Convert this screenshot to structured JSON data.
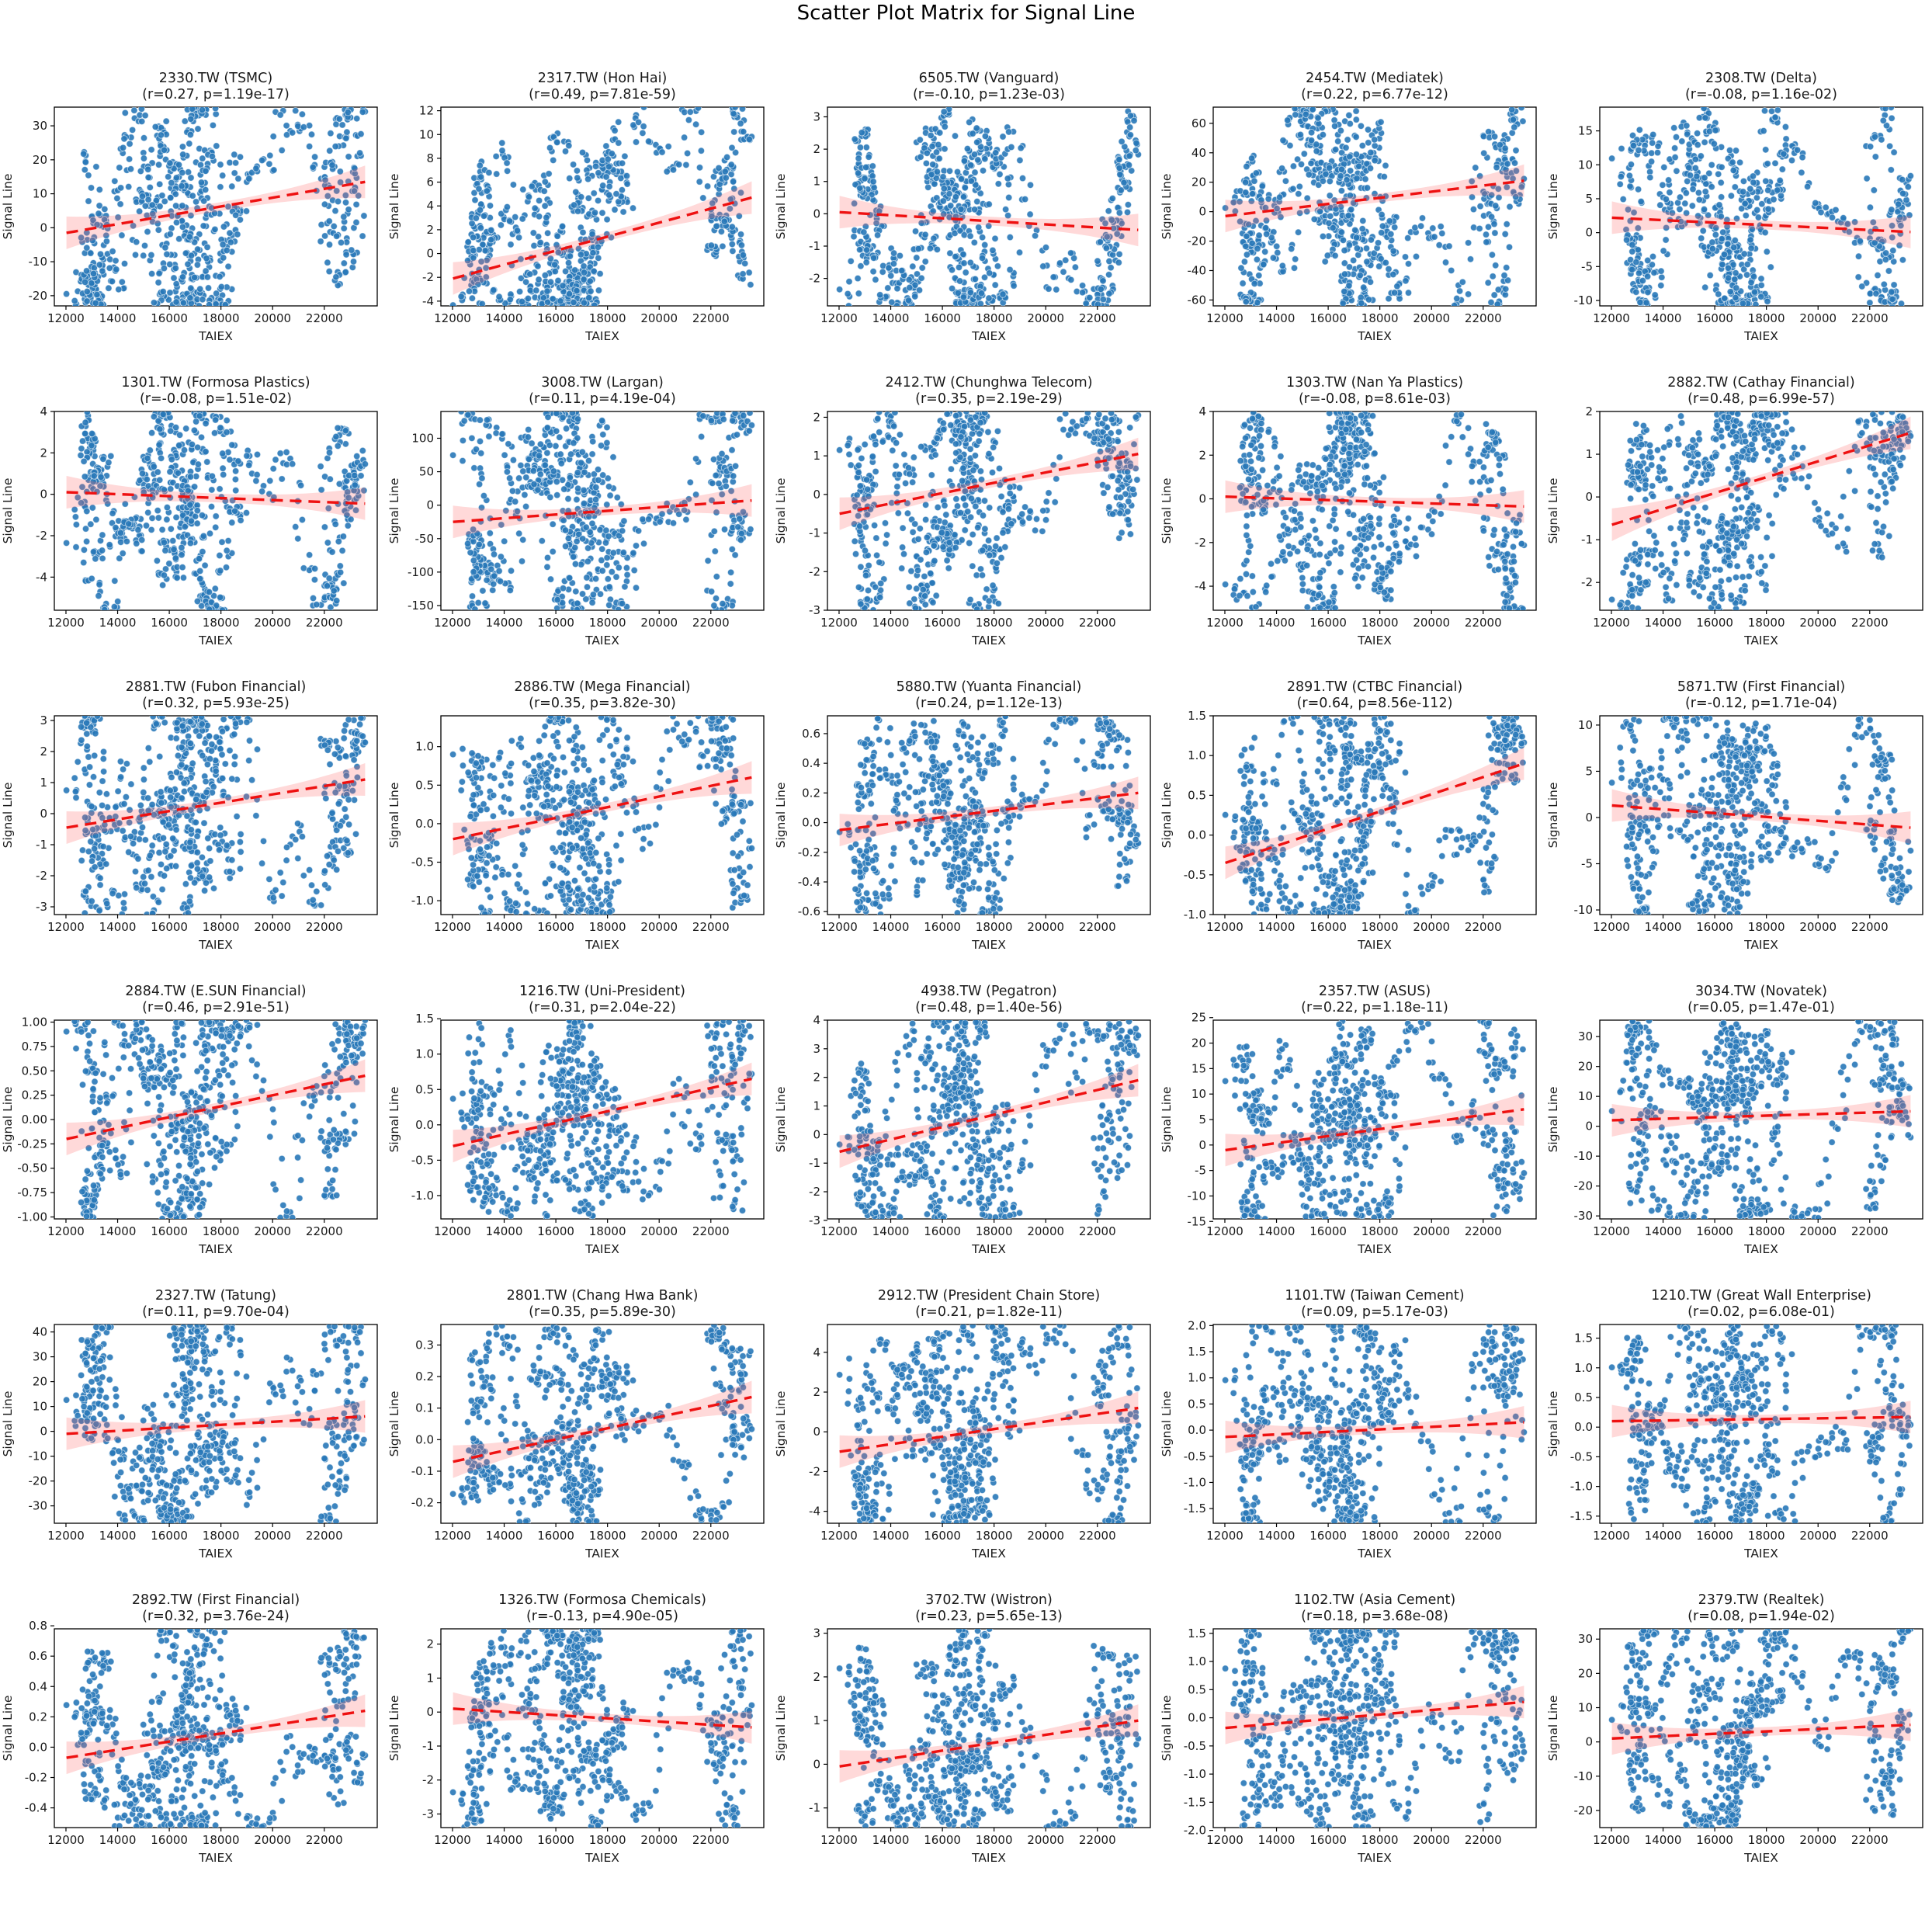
{
  "page_title": "Scatter Plot Matrix for Signal Line",
  "style": {
    "point_color": "#2878b8",
    "point_edge": "#ffffff",
    "trend_color": "#ee1111",
    "band_color": "#ff6666",
    "axis_color": "#000000",
    "text_color": "#1a1a1a"
  },
  "axes": {
    "xlabel": "TAIEX",
    "ylabel": "Signal Line",
    "x_ticks": [
      12000,
      14000,
      16000,
      18000,
      20000,
      22000
    ],
    "xlim": [
      11550,
      24050
    ],
    "x_data_range": [
      12020,
      23580
    ]
  },
  "generation": {
    "n_points": 700,
    "taiex_anchors": [
      12250,
      13600,
      12850,
      14900,
      16300,
      17650,
      18800,
      17250,
      15350,
      12950,
      12750,
      14450,
      15650,
      16850,
      16300,
      15150,
      16800,
      17650,
      16550,
      17350,
      18250,
      20500,
      22400,
      23400,
      21950,
      22700,
      23500
    ]
  },
  "chart_data": [
    {
      "type": "scatter",
      "label": "2330.TW (TSMC)",
      "stats": "(r=0.27, p=1.19e-17)",
      "r": 0.27,
      "p": "1.19e-17",
      "ylim": [
        -23,
        35.5
      ],
      "y_ticks": [
        -20,
        -10,
        0,
        10,
        20,
        30
      ],
      "fmt": 0,
      "trend": [
        -1.5,
        13.5
      ]
    },
    {
      "type": "scatter",
      "label": "2317.TW (Hon Hai)",
      "stats": "(r=0.49, p=7.81e-59)",
      "r": 0.49,
      "p": "7.81e-59",
      "ylim": [
        -4.4,
        12.3
      ],
      "y_ticks": [
        -4,
        -2,
        0,
        2,
        4,
        6,
        8,
        10,
        12
      ],
      "fmt": 0,
      "trend": [
        -2.1,
        4.7
      ]
    },
    {
      "type": "scatter",
      "label": "6505.TW (Vanguard)",
      "stats": "(r=-0.10, p=1.23e-03)",
      "r": -0.1,
      "p": "1.23e-03",
      "ylim": [
        -2.85,
        3.3
      ],
      "y_ticks": [
        -2,
        -1,
        0,
        1,
        2,
        3
      ],
      "fmt": 0,
      "trend": [
        0.05,
        -0.5
      ]
    },
    {
      "type": "scatter",
      "label": "2454.TW (Mediatek)",
      "stats": "(r=0.22, p=6.77e-12)",
      "r": 0.22,
      "p": "6.77e-12",
      "ylim": [
        -64,
        71
      ],
      "y_ticks": [
        -60,
        -40,
        -20,
        0,
        20,
        40,
        60
      ],
      "fmt": 0,
      "trend": [
        -3,
        21
      ]
    },
    {
      "type": "scatter",
      "label": "2308.TW (Delta)",
      "stats": "(r=-0.08, p=1.16e-02)",
      "r": -0.08,
      "p": "1.16e-02",
      "ylim": [
        -10.8,
        18.5
      ],
      "y_ticks": [
        -10,
        -5,
        0,
        5,
        10,
        15
      ],
      "fmt": 0,
      "trend": [
        2.2,
        0.1
      ]
    },
    {
      "type": "scatter",
      "label": "1301.TW (Formosa Plastics)",
      "stats": "(r=-0.08, p=1.51e-02)",
      "r": -0.08,
      "p": "1.51e-02",
      "ylim": [
        -5.6,
        4.0
      ],
      "y_ticks": [
        -4,
        -2,
        0,
        2,
        4
      ],
      "fmt": 0,
      "trend": [
        0.1,
        -0.45
      ]
    },
    {
      "type": "scatter",
      "label": "3008.TW (Largan)",
      "stats": "(r=0.11, p=4.19e-04)",
      "r": 0.11,
      "p": "4.19e-04",
      "ylim": [
        -157,
        140
      ],
      "y_ticks": [
        -150,
        -100,
        -50,
        0,
        50,
        100
      ],
      "fmt": 0,
      "trend": [
        -25,
        7
      ]
    },
    {
      "type": "scatter",
      "label": "2412.TW (Chunghwa Telecom)",
      "stats": "(r=0.35, p=2.19e-29)",
      "r": 0.35,
      "p": "2.19e-29",
      "ylim": [
        -3.0,
        2.15
      ],
      "y_ticks": [
        -3,
        -2,
        -1,
        0,
        1,
        2
      ],
      "fmt": 0,
      "trend": [
        -0.5,
        1.05
      ]
    },
    {
      "type": "scatter",
      "label": "1303.TW (Nan Ya Plastics)",
      "stats": "(r=-0.08, p=8.61e-03)",
      "r": -0.08,
      "p": "8.61e-03",
      "ylim": [
        -5.1,
        4.0
      ],
      "y_ticks": [
        -4,
        -2,
        0,
        2,
        4
      ],
      "fmt": 0,
      "trend": [
        0.1,
        -0.35
      ]
    },
    {
      "type": "scatter",
      "label": "2882.TW (Cathay Financial)",
      "stats": "(r=0.48, p=6.99e-57)",
      "r": 0.48,
      "p": "6.99e-57",
      "ylim": [
        -2.65,
        2.0
      ],
      "y_ticks": [
        -2,
        -1,
        0,
        1,
        2
      ],
      "fmt": 0,
      "trend": [
        -0.65,
        1.5
      ]
    },
    {
      "type": "scatter",
      "label": "2881.TW (Fubon Financial)",
      "stats": "(r=0.32, p=5.93e-25)",
      "r": 0.32,
      "p": "5.93e-25",
      "ylim": [
        -3.25,
        3.15
      ],
      "y_ticks": [
        -3,
        -2,
        -1,
        0,
        1,
        2,
        3
      ],
      "fmt": 0,
      "trend": [
        -0.45,
        1.1
      ]
    },
    {
      "type": "scatter",
      "label": "2886.TW (Mega Financial)",
      "stats": "(r=0.35, p=3.82e-30)",
      "r": 0.35,
      "p": "3.82e-30",
      "ylim": [
        -1.18,
        1.4
      ],
      "y_ticks": [
        -1.0,
        -0.5,
        0.0,
        0.5,
        1.0
      ],
      "fmt": 1,
      "trend": [
        -0.2,
        0.6
      ]
    },
    {
      "type": "scatter",
      "label": "5880.TW (Yuanta Financial)",
      "stats": "(r=0.24, p=1.12e-13)",
      "r": 0.24,
      "p": "1.12e-13",
      "ylim": [
        -0.62,
        0.72
      ],
      "y_ticks": [
        -0.6,
        -0.4,
        -0.2,
        0.0,
        0.2,
        0.4,
        0.6
      ],
      "fmt": 1,
      "trend": [
        -0.05,
        0.2
      ]
    },
    {
      "type": "scatter",
      "label": "2891.TW (CTBC Financial)",
      "stats": "(r=0.64, p=8.56e-112)",
      "r": 0.64,
      "p": "8.56e-112",
      "ylim": [
        -1.0,
        1.5
      ],
      "y_ticks": [
        -1.0,
        -0.5,
        0.0,
        0.5,
        1.0,
        1.5
      ],
      "fmt": 1,
      "trend": [
        -0.35,
        0.9
      ]
    },
    {
      "type": "scatter",
      "label": "5871.TW (First Financial)",
      "stats": "(r=-0.12, p=1.71e-04)",
      "r": -0.12,
      "p": "1.71e-04",
      "ylim": [
        -10.5,
        11
      ],
      "y_ticks": [
        -10,
        -5,
        0,
        5,
        10
      ],
      "fmt": 0,
      "trend": [
        1.3,
        -1.1
      ]
    },
    {
      "type": "scatter",
      "label": "2884.TW (E.SUN Financial)",
      "stats": "(r=0.46, p=2.91e-51)",
      "r": 0.46,
      "p": "2.91e-51",
      "ylim": [
        -1.02,
        1.02
      ],
      "y_ticks": [
        -1.0,
        -0.75,
        -0.5,
        -0.25,
        0.0,
        0.25,
        0.5,
        0.75,
        1.0
      ],
      "fmt": 2,
      "trend": [
        -0.2,
        0.45
      ]
    },
    {
      "type": "scatter",
      "label": "1216.TW (Uni-President)",
      "stats": "(r=0.31, p=2.04e-22)",
      "r": 0.31,
      "p": "2.04e-22",
      "ylim": [
        -1.33,
        1.48
      ],
      "y_ticks": [
        -1.0,
        -0.5,
        0.0,
        0.5,
        1.0,
        1.5
      ],
      "fmt": 1,
      "trend": [
        -0.3,
        0.65
      ]
    },
    {
      "type": "scatter",
      "label": "4938.TW (Pegatron)",
      "stats": "(r=0.48, p=1.40e-56)",
      "r": 0.48,
      "p": "1.40e-56",
      "ylim": [
        -2.95,
        4.0
      ],
      "y_ticks": [
        -3,
        -2,
        -1,
        0,
        1,
        2,
        3,
        4
      ],
      "fmt": 0,
      "trend": [
        -0.6,
        1.9
      ]
    },
    {
      "type": "scatter",
      "label": "2357.TW (ASUS)",
      "stats": "(r=0.22, p=1.18e-11)",
      "r": 0.22,
      "p": "1.18e-11",
      "ylim": [
        -14.5,
        24.5
      ],
      "y_ticks": [
        -15,
        -10,
        -5,
        0,
        5,
        10,
        15,
        20,
        25
      ],
      "fmt": 0,
      "trend": [
        -1,
        7
      ]
    },
    {
      "type": "scatter",
      "label": "3034.TW (Novatek)",
      "stats": "(r=0.05, p=1.47e-01)",
      "r": 0.05,
      "p": "1.47e-01",
      "ylim": [
        -31,
        35.5
      ],
      "y_ticks": [
        -30,
        -20,
        -10,
        0,
        10,
        20,
        30
      ],
      "fmt": 0,
      "trend": [
        2,
        5
      ]
    },
    {
      "type": "scatter",
      "label": "2327.TW (Tatung)",
      "stats": "(r=0.11, p=9.70e-04)",
      "r": 0.11,
      "p": "9.70e-04",
      "ylim": [
        -37,
        43
      ],
      "y_ticks": [
        -30,
        -20,
        -10,
        0,
        10,
        20,
        30,
        40
      ],
      "fmt": 0,
      "trend": [
        -1,
        6
      ]
    },
    {
      "type": "scatter",
      "label": "2801.TW (Chang Hwa Bank)",
      "stats": "(r=0.35, p=5.89e-30)",
      "r": 0.35,
      "p": "5.89e-30",
      "ylim": [
        -0.265,
        0.365
      ],
      "y_ticks": [
        -0.2,
        -0.1,
        0.0,
        0.1,
        0.2,
        0.3
      ],
      "fmt": 1,
      "trend": [
        -0.07,
        0.135
      ]
    },
    {
      "type": "scatter",
      "label": "2912.TW (President Chain Store)",
      "stats": "(r=0.21, p=1.82e-11)",
      "r": 0.21,
      "p": "1.82e-11",
      "ylim": [
        -4.6,
        5.4
      ],
      "y_ticks": [
        -4,
        -2,
        0,
        2,
        4
      ],
      "fmt": 0,
      "trend": [
        -1.0,
        1.2
      ]
    },
    {
      "type": "scatter",
      "label": "1101.TW (Taiwan Cement)",
      "stats": "(r=0.09, p=5.17e-03)",
      "r": 0.09,
      "p": "5.17e-03",
      "ylim": [
        -1.78,
        2.02
      ],
      "y_ticks": [
        -1.5,
        -1.0,
        -0.5,
        0.0,
        0.5,
        1.0,
        1.5,
        2.0
      ],
      "fmt": 1,
      "trend": [
        -0.13,
        0.15
      ]
    },
    {
      "type": "scatter",
      "label": "1210.TW (Great Wall Enterprise)",
      "stats": "(r=0.02, p=6.08e-01)",
      "r": 0.02,
      "p": "6.08e-01",
      "ylim": [
        -1.62,
        1.73
      ],
      "y_ticks": [
        -1.5,
        -1.0,
        -0.5,
        0.0,
        0.5,
        1.0,
        1.5
      ],
      "fmt": 1,
      "trend": [
        0.1,
        0.17
      ]
    },
    {
      "type": "scatter",
      "label": "2892.TW (First Financial)",
      "stats": "(r=0.32, p=3.76e-24)",
      "r": 0.32,
      "p": "3.76e-24",
      "ylim": [
        -0.53,
        0.78
      ],
      "y_ticks": [
        -0.4,
        -0.2,
        0.0,
        0.2,
        0.4,
        0.6,
        0.8
      ],
      "fmt": 1,
      "trend": [
        -0.07,
        0.24
      ]
    },
    {
      "type": "scatter",
      "label": "1326.TW (Formosa Chemicals)",
      "stats": "(r=-0.13, p=4.90e-05)",
      "r": -0.13,
      "p": "4.90e-05",
      "ylim": [
        -3.4,
        2.45
      ],
      "y_ticks": [
        -3,
        -2,
        -1,
        0,
        1,
        2
      ],
      "fmt": 0,
      "trend": [
        0.1,
        -0.45
      ]
    },
    {
      "type": "scatter",
      "label": "3702.TW (Wistron)",
      "stats": "(r=0.23, p=5.65e-13)",
      "r": 0.23,
      "p": "5.65e-13",
      "ylim": [
        -1.45,
        3.1
      ],
      "y_ticks": [
        -1,
        0,
        1,
        2,
        3
      ],
      "fmt": 0,
      "trend": [
        -0.05,
        1.0
      ]
    },
    {
      "type": "scatter",
      "label": "1102.TW (Asia Cement)",
      "stats": "(r=0.18, p=3.68e-08)",
      "r": 0.18,
      "p": "3.68e-08",
      "ylim": [
        -1.95,
        1.58
      ],
      "y_ticks": [
        -2.0,
        -1.5,
        -1.0,
        -0.5,
        0.0,
        0.5,
        1.0,
        1.5
      ],
      "fmt": 1,
      "trend": [
        -0.18,
        0.28
      ]
    },
    {
      "type": "scatter",
      "label": "2379.TW (Realtek)",
      "stats": "(r=0.08, p=1.94e-02)",
      "r": 0.08,
      "p": "1.94e-02",
      "ylim": [
        -25,
        33
      ],
      "y_ticks": [
        -20,
        -10,
        0,
        10,
        20,
        30
      ],
      "fmt": 0,
      "trend": [
        1,
        5
      ]
    }
  ]
}
